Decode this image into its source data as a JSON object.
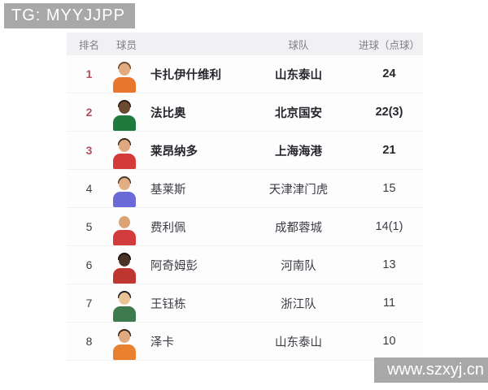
{
  "watermarks": {
    "telegram": "TG: MYYJJPP",
    "website": "www.szxyj.cn"
  },
  "colors": {
    "banner_gray": "#a8a8a8",
    "header_bg": "#f1f1f4",
    "rank_top3_red": "#b0505e",
    "row_separator": "#f1f1f3"
  },
  "table": {
    "headers": {
      "rank": "排名",
      "player": "球员",
      "team": "球队",
      "goals": "进球（点球）"
    },
    "rows": [
      {
        "rank": "1",
        "player": "卡扎伊什维利",
        "team": "山东泰山",
        "goals": "24",
        "top3": true,
        "avatar": {
          "jersey": "#e8762c",
          "skin": "#e2ab80",
          "hair": "#6b4a2f"
        }
      },
      {
        "rank": "2",
        "player": "法比奥",
        "team": "北京国安",
        "goals": "22(3)",
        "top3": true,
        "avatar": {
          "jersey": "#1f7a3d",
          "skin": "#6b4a32",
          "hair": "#241a12"
        }
      },
      {
        "rank": "3",
        "player": "莱昂纳多",
        "team": "上海海港",
        "goals": "21",
        "top3": true,
        "avatar": {
          "jersey": "#d43b38",
          "skin": "#e0a87e",
          "hair": "#3a2a1c"
        }
      },
      {
        "rank": "4",
        "player": "基莱斯",
        "team": "天津津门虎",
        "goals": "15",
        "top3": false,
        "avatar": {
          "jersey": "#6b68d8",
          "skin": "#e3ad83",
          "hair": "#4a3826"
        }
      },
      {
        "rank": "5",
        "player": "费利佩",
        "team": "成都蓉城",
        "goals": "14(1)",
        "top3": false,
        "avatar": {
          "jersey": "#d23c3c",
          "skin": "#d9a376",
          "hair": null
        }
      },
      {
        "rank": "6",
        "player": "阿奇姆彭",
        "team": "河南队",
        "goals": "13",
        "top3": false,
        "avatar": {
          "jersey": "#bf3530",
          "skin": "#4a3425",
          "hair": "#17100b"
        }
      },
      {
        "rank": "7",
        "player": "王钰栋",
        "team": "浙江队",
        "goals": "11",
        "top3": false,
        "avatar": {
          "jersey": "#3d7a4e",
          "skin": "#e9c295",
          "hair": "#1c1c1e"
        }
      },
      {
        "rank": "8",
        "player": "泽卡",
        "team": "山东泰山",
        "goals": "10",
        "top3": false,
        "avatar": {
          "jersey": "#e8802e",
          "skin": "#e0aa80",
          "hair": "#2e2118"
        }
      }
    ]
  }
}
